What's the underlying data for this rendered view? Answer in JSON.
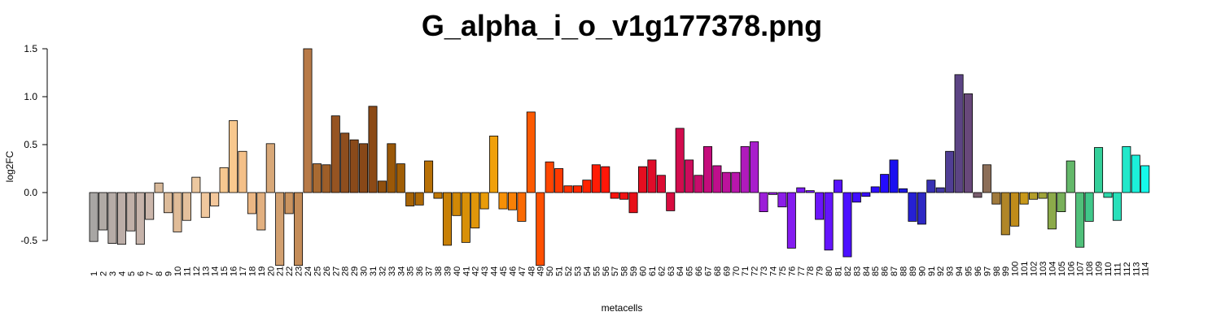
{
  "chart_data": {
    "type": "bar",
    "title": "G_alpha_i_o_v1g177378.png",
    "xlabel": "metacells",
    "ylabel": "log2FC",
    "ylim": [
      -0.78,
      1.5
    ],
    "yticks": [
      -0.5,
      0.0,
      0.5,
      1.0,
      1.5
    ],
    "ytick_labels": [
      "-0.5",
      "0.0",
      "0.5",
      "1.0",
      "1.5"
    ],
    "grid": false,
    "legend": "none",
    "categories": [
      "1",
      "2",
      "3",
      "4",
      "5",
      "6",
      "7",
      "8",
      "9",
      "10",
      "11",
      "12",
      "13",
      "14",
      "15",
      "16",
      "17",
      "18",
      "19",
      "20",
      "21",
      "22",
      "23",
      "24",
      "25",
      "26",
      "27",
      "28",
      "29",
      "30",
      "31",
      "32",
      "33",
      "34",
      "35",
      "36",
      "37",
      "38",
      "39",
      "40",
      "41",
      "42",
      "43",
      "44",
      "45",
      "46",
      "47",
      "48",
      "49",
      "50",
      "51",
      "52",
      "53",
      "54",
      "55",
      "56",
      "57",
      "58",
      "59",
      "60",
      "61",
      "62",
      "63",
      "64",
      "65",
      "66",
      "67",
      "68",
      "69",
      "70",
      "71",
      "72",
      "73",
      "74",
      "75",
      "76",
      "77",
      "78",
      "79",
      "80",
      "81",
      "82",
      "83",
      "84",
      "85",
      "86",
      "87",
      "88",
      "89",
      "90",
      "91",
      "92",
      "93",
      "94",
      "95",
      "96",
      "97",
      "98",
      "99",
      "100",
      "101",
      "102",
      "103",
      "104",
      "105",
      "106",
      "107",
      "108",
      "109",
      "110",
      "111",
      "112",
      "113",
      "114"
    ],
    "values": [
      -0.51,
      -0.39,
      -0.53,
      -0.54,
      -0.4,
      -0.54,
      -0.28,
      0.1,
      -0.21,
      -0.41,
      -0.29,
      0.16,
      -0.26,
      -0.14,
      0.26,
      0.75,
      0.43,
      -0.22,
      -0.39,
      0.51,
      -0.76,
      -0.22,
      -0.76,
      1.5,
      0.3,
      0.29,
      0.8,
      0.62,
      0.55,
      0.51,
      0.9,
      0.12,
      0.51,
      0.3,
      -0.14,
      -0.13,
      0.33,
      -0.06,
      -0.55,
      -0.24,
      -0.52,
      -0.37,
      -0.17,
      0.59,
      -0.17,
      -0.18,
      -0.3,
      0.84,
      -0.76,
      0.32,
      0.25,
      0.07,
      0.07,
      0.13,
      0.29,
      0.27,
      -0.06,
      -0.07,
      -0.21,
      0.27,
      0.34,
      0.18,
      -0.19,
      0.67,
      0.34,
      0.18,
      0.48,
      0.28,
      0.21,
      0.21,
      0.48,
      0.53,
      -0.2,
      -0.02,
      -0.15,
      -0.58,
      0.05,
      0.02,
      -0.28,
      -0.6,
      0.13,
      -0.67,
      -0.1,
      -0.04,
      0.06,
      0.19,
      0.34,
      0.04,
      -0.3,
      -0.33,
      0.13,
      0.05,
      0.43,
      1.23,
      1.03,
      -0.05,
      0.29,
      -0.12,
      -0.44,
      -0.35,
      -0.12,
      -0.07,
      -0.06,
      -0.38,
      -0.2,
      0.33,
      -0.57,
      -0.3,
      0.47,
      -0.05,
      -0.29,
      0.48,
      0.39,
      0.28
    ],
    "colors": [
      "#a8a6a4",
      "#b0aaa5",
      "#b6aca7",
      "#bcaea8",
      "#c1b0a8",
      "#c6b3aa",
      "#cbb6ab",
      "#d8b99a",
      "#dcbb9a",
      "#e0bc98",
      "#e4c09c",
      "#ecc8a0",
      "#f0c89e",
      "#f4c89c",
      "#f6c890",
      "#f8c88e",
      "#f4c088",
      "#ebb784",
      "#e2b080",
      "#d8a878",
      "#d2a070",
      "#ca9460",
      "#c48c58",
      "#b87a48",
      "#a86a32",
      "#9e5e28",
      "#965422",
      "#8e4e1e",
      "#8a4a1a",
      "#884818",
      "#8c4a16",
      "#90500e",
      "#9a5808",
      "#a05e06",
      "#a86406",
      "#b06a06",
      "#b87006",
      "#c07806",
      "#c88006",
      "#d08806",
      "#d89008",
      "#e0960a",
      "#e89c0a",
      "#f0a00a",
      "#f69006",
      "#f88006",
      "#fa6a04",
      "#fc5a02",
      "#ff5000",
      "#ff4600",
      "#ff3a00",
      "#ff3000",
      "#ff2800",
      "#ff2200",
      "#ff1c04",
      "#ff1608",
      "#f8140e",
      "#f01212",
      "#e81018",
      "#e40e20",
      "#e00c2a",
      "#dc0c34",
      "#d80c40",
      "#d20c4e",
      "#cc0c5c",
      "#c80c6c",
      "#c40c7c",
      "#c00e8c",
      "#bc129c",
      "#b816ac",
      "#b01abc",
      "#a81ecc",
      "#9c1ed8",
      "#941ee0",
      "#8c1ee8",
      "#841cf0",
      "#7c1af4",
      "#7418f8",
      "#6c16fa",
      "#6414fc",
      "#5812fe",
      "#4c10ff",
      "#420eff",
      "#380cff",
      "#2e0cff",
      "#240cff",
      "#1a10f0",
      "#1e18e4",
      "#2620d4",
      "#2e28c4",
      "#3830b4",
      "#4438a4",
      "#503e94",
      "#5c4484",
      "#68487a",
      "#7a5e6e",
      "#8c6e58",
      "#a07a3c",
      "#b08628",
      "#c08c1a",
      "#c8981a",
      "#b49e2a",
      "#a0a43a",
      "#8caa4a",
      "#78b05a",
      "#64b86a",
      "#50c07a",
      "#40c88a",
      "#34d09a",
      "#2ed8aa",
      "#28e0ba",
      "#22e8ca",
      "#1cf0da",
      "#16f8ea"
    ]
  }
}
